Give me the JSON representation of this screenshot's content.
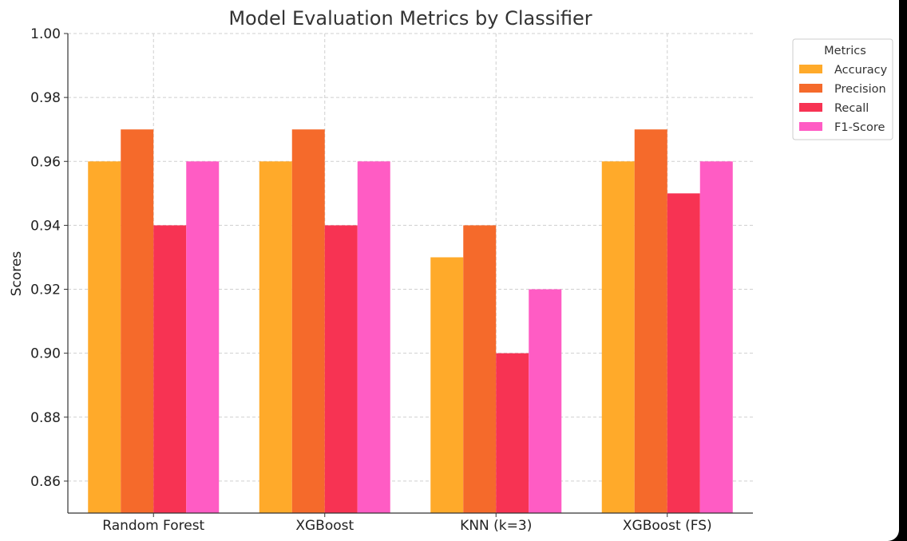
{
  "chart_data": {
    "type": "bar",
    "title": "Model Evaluation Metrics by Classifier",
    "xlabel": "",
    "ylabel": "Scores",
    "ylim": [
      0.85,
      1.0
    ],
    "yticks": [
      "0.86",
      "0.88",
      "0.90",
      "0.92",
      "0.94",
      "0.96",
      "0.98",
      "1.00"
    ],
    "grid": true,
    "legend_title": "Metrics",
    "legend_position": "outside-top-right",
    "categories": [
      "Random Forest",
      "XGBoost",
      "KNN (k=3)",
      "XGBoost (FS)"
    ],
    "series": [
      {
        "name": "Accuracy",
        "color": "#FFAA2A",
        "values": [
          0.96,
          0.96,
          0.93,
          0.96
        ]
      },
      {
        "name": "Precision",
        "color": "#F56A2B",
        "values": [
          0.97,
          0.97,
          0.94,
          0.97
        ]
      },
      {
        "name": "Recall",
        "color": "#F73353",
        "values": [
          0.94,
          0.94,
          0.9,
          0.95
        ]
      },
      {
        "name": "F1-Score",
        "color": "#FF5CC4",
        "values": [
          0.96,
          0.96,
          0.92,
          0.96
        ]
      }
    ]
  }
}
